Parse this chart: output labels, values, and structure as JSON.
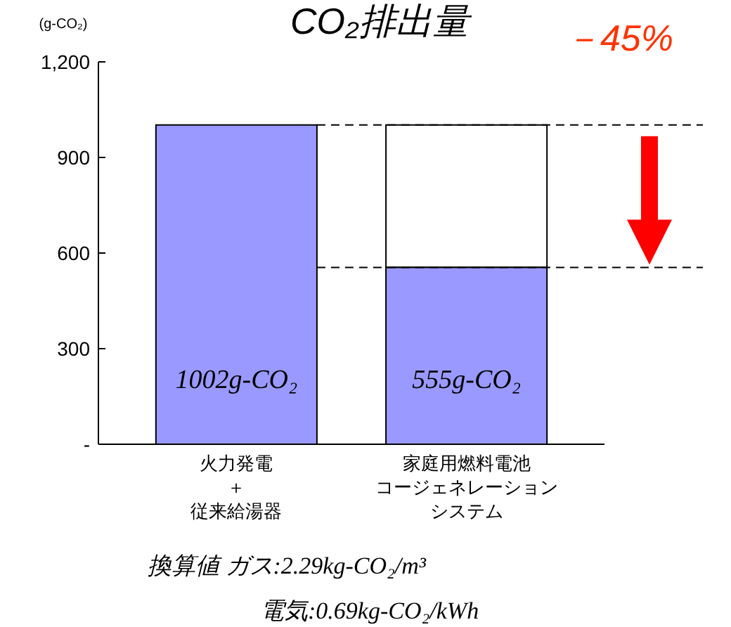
{
  "chart_data": {
    "type": "bar",
    "title": "CO₂排出量",
    "ylabel": "(g-CO₂)",
    "categories": [
      "火力発電＋従来給湯器",
      "家庭用燃料電池コージェネレーションシステム"
    ],
    "values": [
      1002,
      555
    ],
    "color": "#9999ff",
    "value_labels": [
      "1002g-CO₂",
      "555g-CO₂"
    ],
    "ylim": [
      0,
      1200
    ],
    "yticks": [
      {
        "value": 0,
        "label": "-"
      },
      {
        "value": 300,
        "label": "300"
      },
      {
        "value": 600,
        "label": "600"
      },
      {
        "value": 900,
        "label": "900"
      },
      {
        "value": 1200,
        "label": "1,200"
      }
    ],
    "ref_lines": [
      {
        "axis": "y",
        "value": 1002,
        "line_style": "dashed",
        "color": "#000000"
      },
      {
        "axis": "y",
        "value": 555,
        "line_style": "dashed",
        "color": "#000000"
      }
    ],
    "annotations": [
      "－45%",
      "換算値 ガス:2.29kg-CO₂/m³",
      "電気:0.69kg-CO₂/kWh"
    ],
    "grid": false
  }
}
